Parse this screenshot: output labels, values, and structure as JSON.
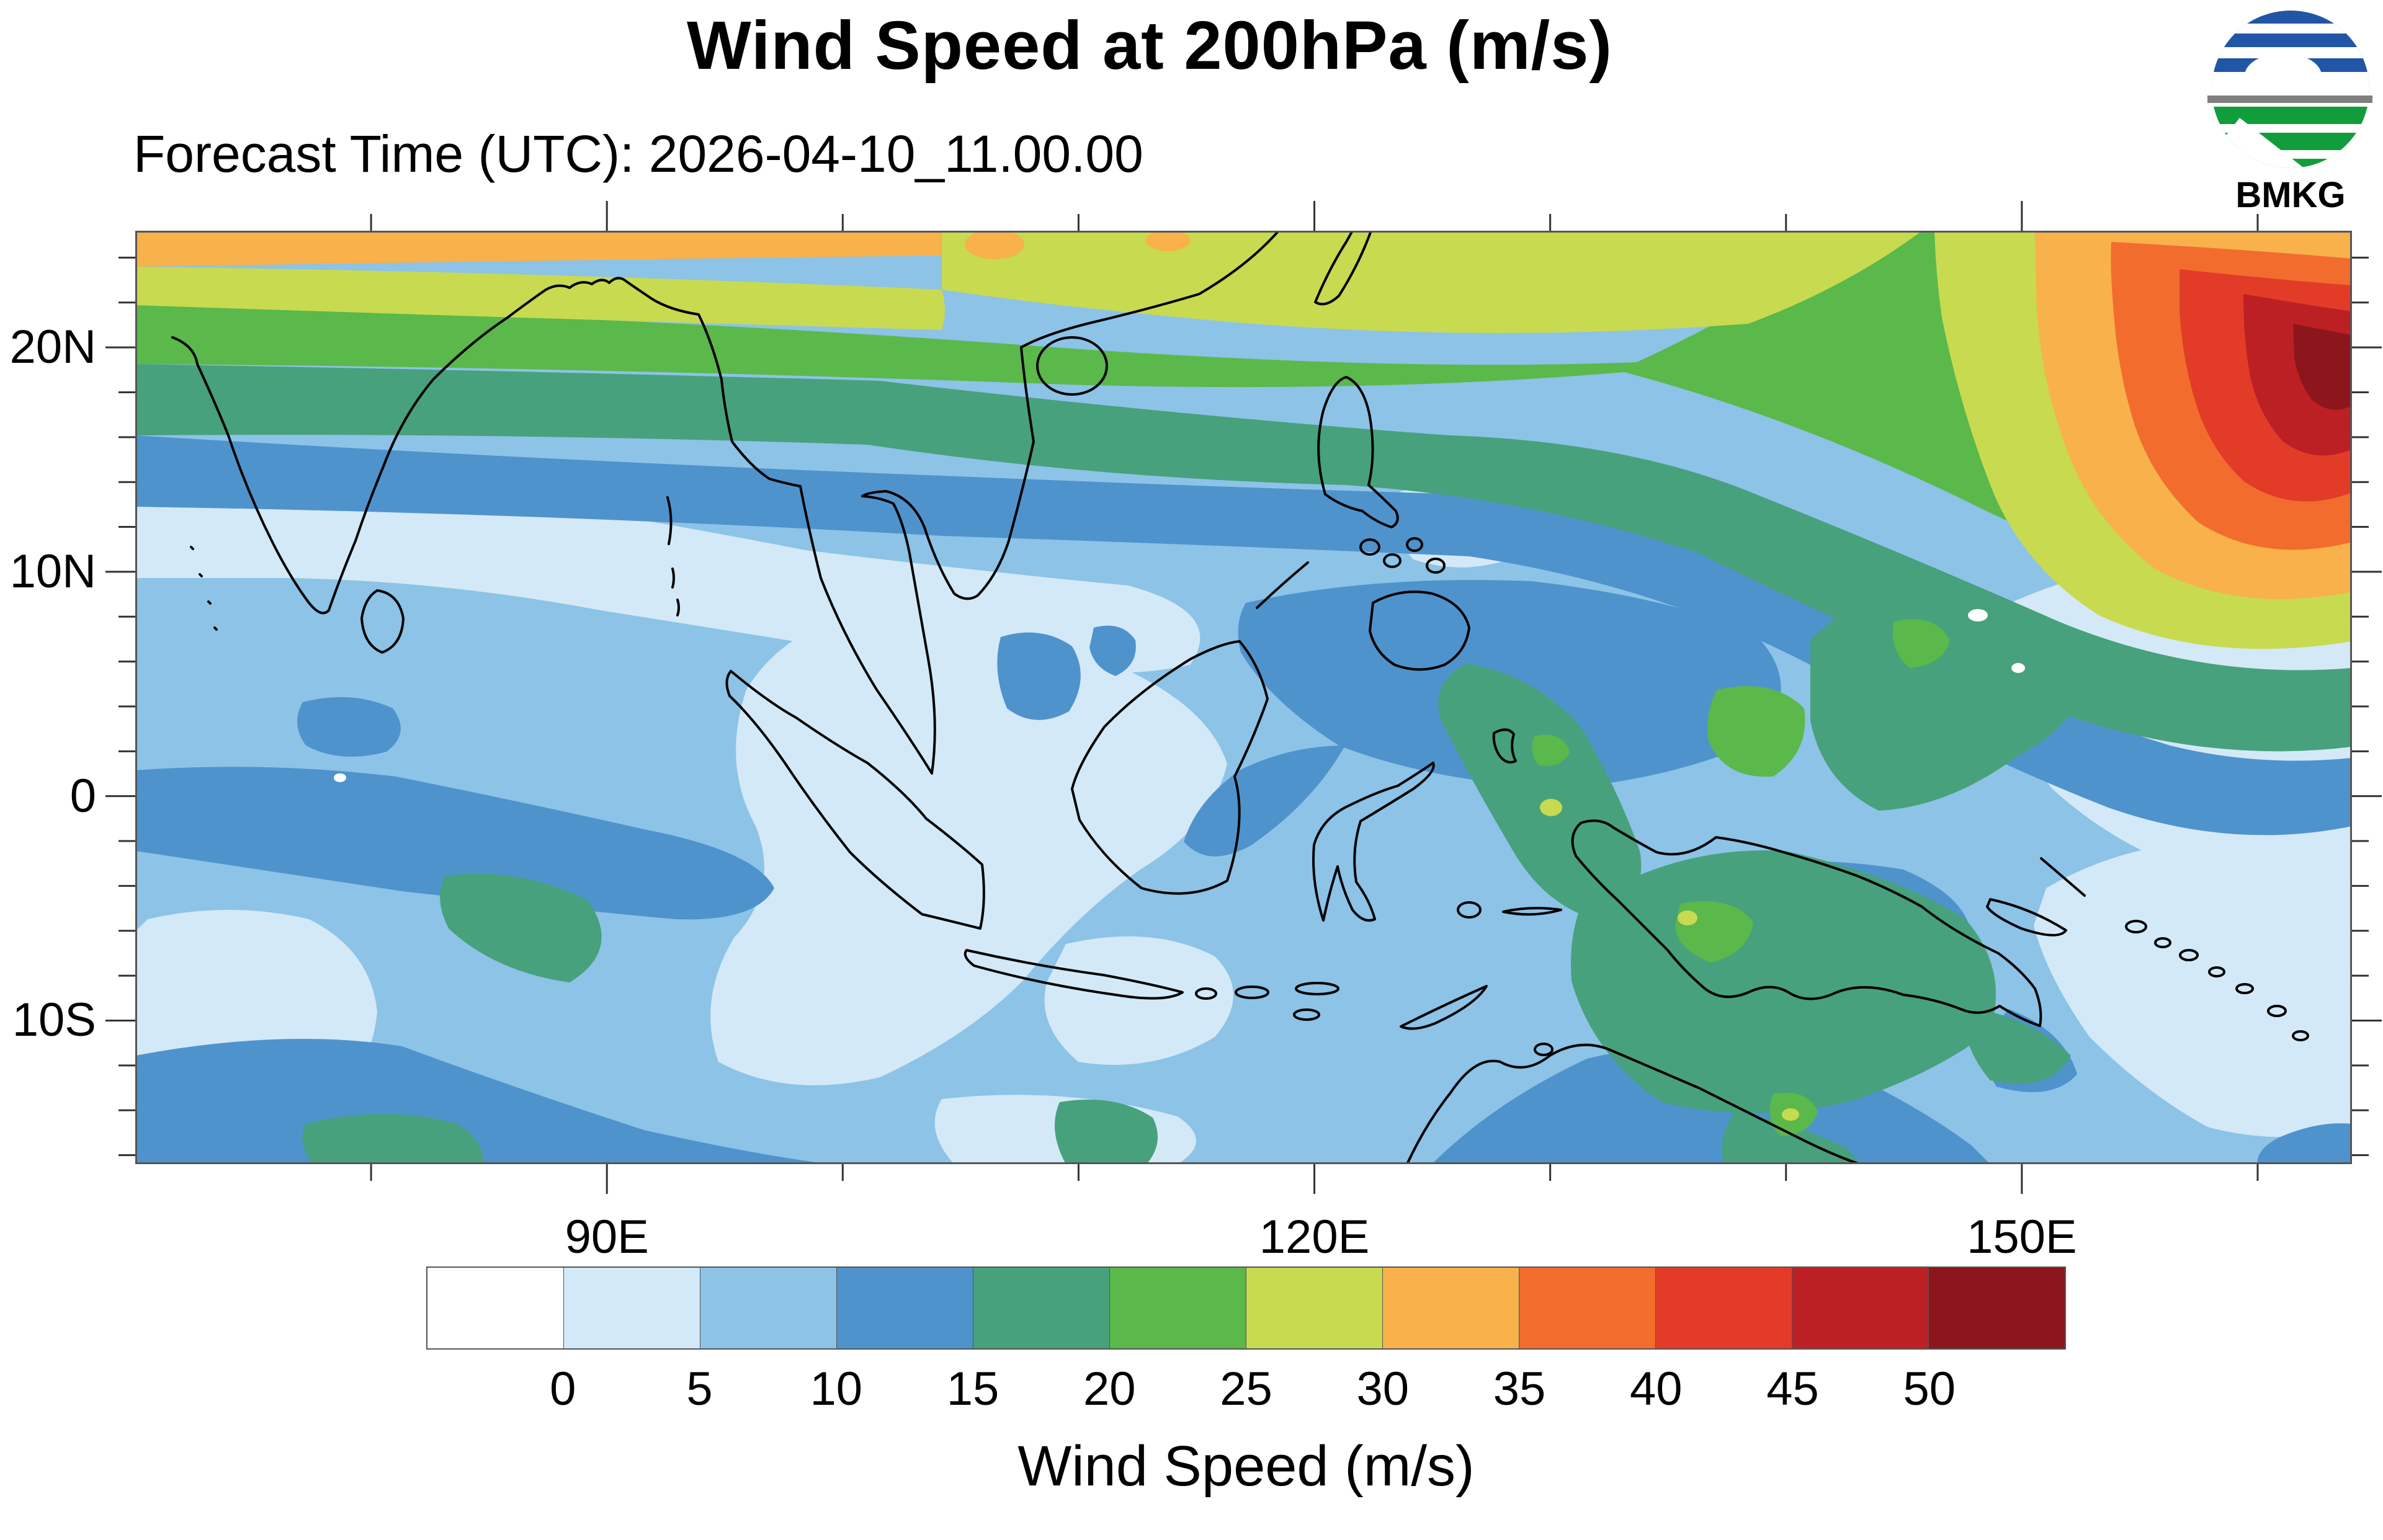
{
  "header": {
    "title": "Wind Speed at 200hPa (m/s)",
    "forecast_time_label": "Forecast Time (UTC): 2026-04-10_11.00.00",
    "logo_text": "BMKG",
    "logo_colors": {
      "blue": "#2156a6",
      "green": "#129d3d",
      "gray": "#7f7f7f",
      "text": "#000000"
    }
  },
  "axes": {
    "lat_ticks": [
      {
        "label": "20N",
        "deg": 20
      },
      {
        "label": "10N",
        "deg": 10
      },
      {
        "label": "0",
        "deg": 0
      },
      {
        "label": "10S",
        "deg": -10
      }
    ],
    "lon_ticks": [
      {
        "label": "90E",
        "deg": 90
      },
      {
        "label": "120E",
        "deg": 120
      },
      {
        "label": "150E",
        "deg": 150
      }
    ]
  },
  "colorbar": {
    "title": "Wind Speed (m/s)",
    "boundary_labels": [
      "0",
      "5",
      "10",
      "15",
      "20",
      "25",
      "30",
      "35",
      "40",
      "45",
      "50"
    ],
    "colors": [
      "#ffffff",
      "#d3e9f7",
      "#8cc3e7",
      "#4f93cd",
      "#47a17d",
      "#5bb84a",
      "#c8da50",
      "#f8b14b",
      "#f26c2e",
      "#e23b27",
      "#bc2025",
      "#8c161c"
    ]
  },
  "chart_data": {
    "type": "heatmap",
    "subtype": "filled-contour-map",
    "title": "Wind Speed at 200hPa (m/s)",
    "forecast_time_utc": "2026-04-10_11.00.00",
    "variable": "Wind Speed",
    "units": "m/s",
    "pressure_level": "200hPa",
    "source_logo": "BMKG",
    "x_axis": {
      "tick_labels": [
        "90E",
        "120E",
        "150E"
      ],
      "minor_tick_step_deg": 10,
      "range_deg_east": [
        70,
        164
      ]
    },
    "y_axis": {
      "tick_labels": [
        "20N",
        "10N",
        "0",
        "10S"
      ],
      "minor_tick_step_deg": 2,
      "range_deg_north": [
        -16.4,
        25.2
      ]
    },
    "contour_levels": [
      0,
      5,
      10,
      15,
      20,
      25,
      30,
      35,
      40,
      45,
      50
    ],
    "palette": [
      "#ffffff",
      "#d3e9f7",
      "#8cc3e7",
      "#4f93cd",
      "#47a17d",
      "#5bb84a",
      "#c8da50",
      "#f8b14b",
      "#f26c2e",
      "#e23b27",
      "#bc2025",
      "#8c161c"
    ],
    "legend_position": "bottom",
    "grid": false,
    "notable_features": [
      {
        "region": "northeast corner, ~150-164E / 17-25N",
        "value_m_s": "jet maximum > 50"
      },
      {
        "region": "band along northern edge, 22-25N across full domain",
        "value_m_s": "25-40"
      },
      {
        "region": "subtropical band ~18-21N",
        "value_m_s": "10-20"
      },
      {
        "region": "equatorial belt 10N-10S",
        "value_m_s": "mostly 0-10 with 10-15 patches"
      },
      {
        "region": "east of Philippines toward 135E",
        "value_m_s": "15-25"
      },
      {
        "region": "New Guinea and northern Australia",
        "value_m_s": "15-25"
      },
      {
        "region": "far east equatorial area ~150-164E near equator",
        "value_m_s": "0-5"
      }
    ]
  }
}
